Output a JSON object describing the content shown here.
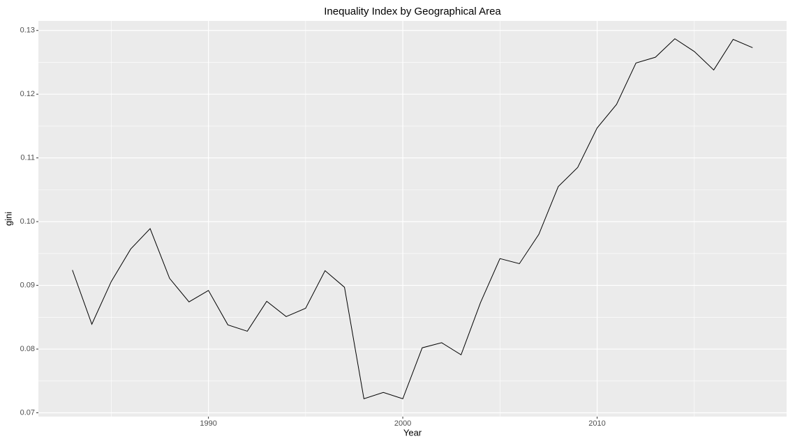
{
  "chart_data": {
    "type": "line",
    "title": "Inequality Index by Geographical Area",
    "x_label": "Year",
    "y_label": "gini",
    "x": [
      1983,
      1984,
      1985,
      1986,
      1987,
      1988,
      1989,
      1990,
      1991,
      1992,
      1993,
      1994,
      1995,
      1996,
      1997,
      1998,
      1999,
      2000,
      2001,
      2002,
      2003,
      2004,
      2005,
      2006,
      2007,
      2008,
      2009,
      2010,
      2011,
      2012,
      2013,
      2014,
      2015,
      2016,
      2017,
      2018
    ],
    "series": [
      {
        "name": "gini",
        "color": "#000000",
        "values": [
          0.0924,
          0.0839,
          0.0906,
          0.0957,
          0.0989,
          0.0911,
          0.0874,
          0.0892,
          0.0838,
          0.0828,
          0.0875,
          0.0851,
          0.0864,
          0.0923,
          0.0897,
          0.0722,
          0.0732,
          0.0722,
          0.0802,
          0.081,
          0.0791,
          0.0873,
          0.0942,
          0.0934,
          0.098,
          0.1055,
          0.1085,
          0.1147,
          0.1184,
          0.1249,
          0.1258,
          0.1287,
          0.1267,
          0.1238,
          0.1286,
          0.1273
        ]
      }
    ],
    "xlim": [
      1981.25,
      2019.75
    ],
    "xticks": [
      1990,
      2000,
      2010
    ],
    "x_minor_ticks": [
      1985,
      1995,
      2005,
      2015
    ],
    "ylim": [
      0.0694,
      0.1315
    ],
    "yticks": [
      0.07,
      0.08,
      0.09,
      {
        "value": 0.1,
        "label": "0.10"
      },
      0.11,
      0.12,
      0.13
    ],
    "y_minor_ticks": [
      0.075,
      0.085,
      0.095,
      0.105,
      0.115,
      0.125
    ],
    "grid": true,
    "background": "#ebebeb"
  }
}
